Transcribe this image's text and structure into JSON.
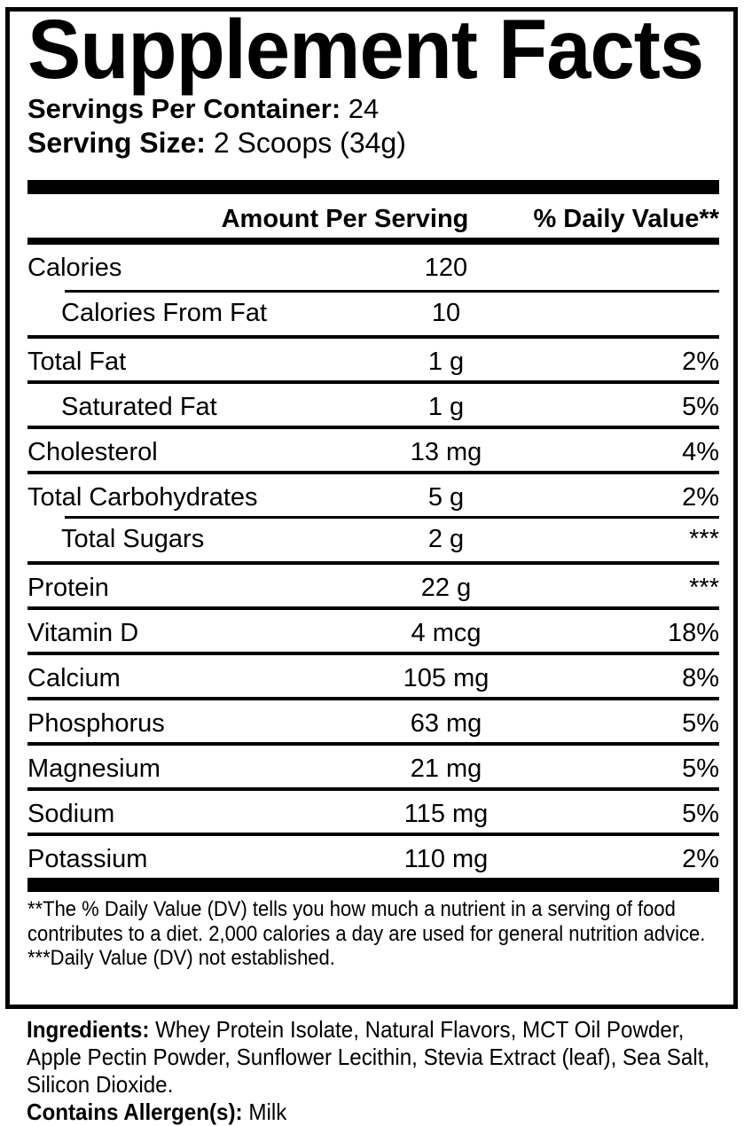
{
  "title": "Supplement Facts",
  "servings_per_container": {
    "label": "Servings Per Container:",
    "value": "24"
  },
  "serving_size": {
    "label": "Serving Size:",
    "value": "2 Scoops (34g)"
  },
  "table": {
    "headers": {
      "amount": "Amount Per Serving",
      "dv": "% Daily Value**"
    },
    "rows": [
      {
        "name": "Calories",
        "amount": "120",
        "dv": "",
        "indent": false,
        "separator": "none"
      },
      {
        "name": "Calories From Fat",
        "amount": "10",
        "dv": "",
        "indent": true,
        "separator": "indent"
      },
      {
        "name": "Total Fat",
        "amount": "1 g",
        "dv": "2%",
        "indent": false,
        "separator": "full"
      },
      {
        "name": "Saturated Fat",
        "amount": "1 g",
        "dv": "5%",
        "indent": true,
        "separator": "full"
      },
      {
        "name": "Cholesterol",
        "amount": "13 mg",
        "dv": "4%",
        "indent": false,
        "separator": "full"
      },
      {
        "name": "Total Carbohydrates",
        "amount": "5 g",
        "dv": "2%",
        "indent": false,
        "separator": "full"
      },
      {
        "name": "Total Sugars",
        "amount": "2 g",
        "dv": "***",
        "indent": true,
        "separator": "indent"
      },
      {
        "name": "Protein",
        "amount": "22 g",
        "dv": "***",
        "indent": false,
        "separator": "full"
      },
      {
        "name": "Vitamin D",
        "amount": "4 mcg",
        "dv": "18%",
        "indent": false,
        "separator": "full"
      },
      {
        "name": "Calcium",
        "amount": "105 mg",
        "dv": "8%",
        "indent": false,
        "separator": "full"
      },
      {
        "name": "Phosphorus",
        "amount": "63 mg",
        "dv": "5%",
        "indent": false,
        "separator": "full"
      },
      {
        "name": "Magnesium",
        "amount": "21 mg",
        "dv": "5%",
        "indent": false,
        "separator": "full"
      },
      {
        "name": "Sodium",
        "amount": "115 mg",
        "dv": "5%",
        "indent": false,
        "separator": "full"
      },
      {
        "name": "Potassium",
        "amount": "110 mg",
        "dv": "2%",
        "indent": false,
        "separator": "full"
      }
    ]
  },
  "footnotes": [
    "**The % Daily Value (DV) tells you how much a nutrient in a serving of food contributes to a diet. 2,000 calories a day are used for general nutrition advice.",
    "***Daily Value (DV) not established."
  ],
  "ingredients": {
    "label": "Ingredients:",
    "value": " Whey Protein Isolate, Natural Flavors, MCT Oil Powder, Apple Pectin Powder, Sunflower Lecithin, Stevia Extract (leaf), Sea Salt, Silicon Dioxide."
  },
  "allergens": {
    "label": "Contains Allergen(s):",
    "value": " Milk"
  },
  "colors": {
    "text": "#000000",
    "background": "#ffffff"
  }
}
